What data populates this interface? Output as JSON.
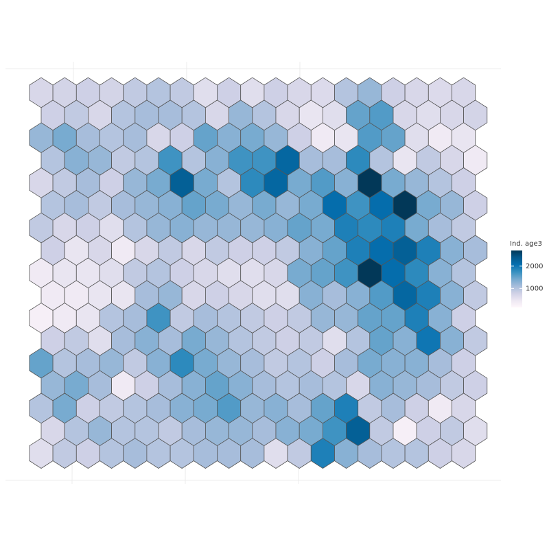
{
  "chart_data": {
    "type": "hexmap",
    "legend_title": "Ind. age3",
    "colorlim": [
      150,
      2700
    ],
    "colorticks": [
      1000,
      2000
    ],
    "palette": [
      "#fff7fb",
      "#ece7f2",
      "#d0d1e6",
      "#a6bddb",
      "#74a9cf",
      "#3690c0",
      "#0570b0",
      "#045a8d",
      "#023858"
    ],
    "values": [
      [
        700,
        750,
        800,
        750,
        900,
        1000,
        900,
        600,
        800,
        600,
        800,
        700,
        650,
        1000,
        1200,
        800,
        700,
        650,
        700
      ],
      [
        800,
        900,
        700,
        1000,
        1100,
        1100,
        1000,
        700,
        1200,
        1000,
        700,
        500,
        600,
        1500,
        1600,
        700,
        600,
        700,
        750
      ],
      [
        1200,
        1400,
        1100,
        1000,
        1100,
        700,
        800,
        1500,
        1300,
        1400,
        1200,
        800,
        400,
        500,
        1600,
        1500,
        600,
        400,
        500
      ],
      [
        1000,
        1300,
        1200,
        900,
        1000,
        1700,
        1000,
        1300,
        1700,
        1700,
        2200,
        1100,
        1100,
        1800,
        1000,
        500,
        900,
        700,
        400
      ],
      [
        700,
        900,
        1100,
        800,
        1200,
        1400,
        2300,
        1400,
        1000,
        1800,
        2200,
        1400,
        1600,
        1300,
        2700,
        1400,
        1200,
        1000,
        800
      ],
      [
        1000,
        1100,
        900,
        1100,
        1200,
        1300,
        1500,
        1400,
        1200,
        1400,
        1200,
        1400,
        2100,
        1700,
        2100,
        2700,
        1400,
        1200,
        800
      ],
      [
        900,
        700,
        800,
        600,
        1000,
        1200,
        1300,
        1200,
        1200,
        1200,
        1300,
        1500,
        1400,
        1900,
        1800,
        1900,
        1400,
        1100,
        900
      ],
      [
        800,
        500,
        700,
        400,
        700,
        900,
        700,
        900,
        800,
        800,
        900,
        1300,
        1500,
        1900,
        2100,
        2300,
        1900,
        1300,
        1100
      ],
      [
        400,
        500,
        500,
        600,
        900,
        1000,
        800,
        700,
        600,
        600,
        700,
        1400,
        1500,
        1700,
        2700,
        2100,
        1800,
        1300,
        1000
      ],
      [
        400,
        400,
        500,
        500,
        1100,
        1200,
        700,
        800,
        700,
        600,
        600,
        1300,
        1100,
        1300,
        1600,
        2200,
        1900,
        1300,
        900
      ],
      [
        300,
        400,
        500,
        1000,
        1100,
        1700,
        900,
        1100,
        1000,
        900,
        800,
        900,
        1200,
        1200,
        1500,
        1500,
        1900,
        1300,
        800
      ],
      [
        800,
        900,
        600,
        1100,
        1300,
        1100,
        1400,
        1200,
        1000,
        900,
        800,
        900,
        600,
        1000,
        1500,
        1300,
        2000,
        1300,
        900
      ],
      [
        1500,
        1000,
        1100,
        1200,
        900,
        1300,
        1800,
        1400,
        1200,
        1100,
        900,
        1000,
        800,
        1100,
        1400,
        1300,
        1300,
        1100,
        800
      ],
      [
        1200,
        1400,
        1100,
        400,
        800,
        1100,
        1300,
        1500,
        1300,
        1100,
        1000,
        1100,
        1000,
        700,
        1300,
        1200,
        1100,
        900,
        800
      ],
      [
        1000,
        1400,
        800,
        900,
        1000,
        1100,
        1300,
        1400,
        1600,
        1200,
        1300,
        1100,
        1500,
        1900,
        900,
        1100,
        800,
        400,
        700
      ],
      [
        700,
        1000,
        1200,
        1000,
        1000,
        900,
        1100,
        1200,
        1200,
        1100,
        1300,
        1400,
        1700,
        2300,
        900,
        300,
        800,
        900,
        600
      ],
      [
        600,
        900,
        800,
        1000,
        1100,
        1000,
        1000,
        1100,
        1100,
        1100,
        600,
        900,
        1900,
        1300,
        1100,
        1000,
        1000,
        800,
        700
      ]
    ]
  }
}
